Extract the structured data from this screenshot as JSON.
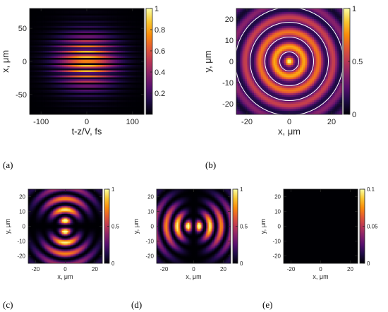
{
  "chart_data": [
    {
      "panel": "(a)",
      "type": "heatmap",
      "xlabel": "t-z/V, fs",
      "ylabel": "x, μm",
      "xlim": [
        -125,
        125
      ],
      "ylim": [
        -80,
        80
      ],
      "xticks": [
        -100,
        0,
        100
      ],
      "yticks": [
        -50,
        0,
        50
      ],
      "clim": [
        0,
        1
      ],
      "cbar_ticks": [
        0.2,
        0.4,
        0.6,
        0.8,
        1
      ],
      "colormap": "inferno",
      "description_values": {
        "peak": 1,
        "peak_at": [
          0,
          0
        ],
        "pattern": "horizontal fringes"
      }
    },
    {
      "panel": "(b)",
      "type": "heatmap",
      "xlabel": "x, μm",
      "ylabel": "y, μm",
      "xlim": [
        -25,
        25
      ],
      "ylim": [
        -25,
        25
      ],
      "xticks": [
        -20,
        0,
        20
      ],
      "yticks": [
        -20,
        -10,
        0,
        10,
        20
      ],
      "clim": [
        0,
        1
      ],
      "cbar_ticks": [
        0,
        0.5,
        1
      ],
      "colormap": "inferno",
      "description_values": {
        "peak": 1,
        "peak_at": [
          0,
          0
        ],
        "pattern": "concentric rings with azimuthal vector field"
      }
    },
    {
      "panel": "(c)",
      "type": "heatmap",
      "xlabel": "x, μm",
      "ylabel": "y, μm",
      "xlim": [
        -25,
        25
      ],
      "ylim": [
        -25,
        25
      ],
      "xticks": [
        -20,
        0,
        20
      ],
      "yticks": [
        -20,
        -10,
        0,
        10,
        20
      ],
      "clim": [
        0,
        1
      ],
      "cbar_ticks": [
        0,
        0.5,
        1
      ],
      "colormap": "inferno"
    },
    {
      "panel": "(d)",
      "type": "heatmap",
      "xlabel": "x, μm",
      "ylabel": "y, μm",
      "xlim": [
        -25,
        25
      ],
      "ylim": [
        -25,
        25
      ],
      "xticks": [
        -20,
        0,
        20
      ],
      "yticks": [
        -20,
        -10,
        0,
        10,
        20
      ],
      "clim": [
        0,
        1
      ],
      "cbar_ticks": [
        0,
        0.5,
        1
      ],
      "colormap": "inferno"
    },
    {
      "panel": "(e)",
      "type": "heatmap",
      "xlabel": "x, μm",
      "ylabel": "y, μm",
      "xlim": [
        -25,
        25
      ],
      "ylim": [
        -25,
        25
      ],
      "xticks": [
        -20,
        0,
        20
      ],
      "yticks": [
        -20,
        -10,
        0,
        10,
        20
      ],
      "clim": [
        0,
        0.1
      ],
      "cbar_ticks": [
        0,
        0.05,
        0.1
      ],
      "colormap": "inferno",
      "description_values": {
        "peak": 0,
        "pattern": "uniformly zero"
      }
    }
  ]
}
